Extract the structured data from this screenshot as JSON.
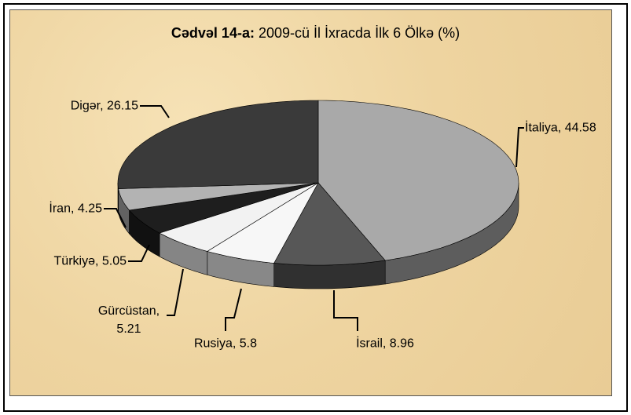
{
  "chart_data": {
    "type": "pie3d",
    "title_label": "Cədvəl 14-a:",
    "title": "2009-cü İl İxracda İlk 6 Ölkə (%)",
    "values": [
      44.58,
      8.96,
      5.8,
      5.21,
      5.05,
      4.25,
      26.15
    ],
    "value_labels": [
      "İtaliya, 44.58",
      "İsrail, 8.96",
      "Rusiya, 5.8",
      "Gürcüstan, 5.21",
      "Türkiyə, 5.05",
      "İran, 4.25",
      "Digər, 26.15"
    ],
    "colors": [
      "#a9a9a9",
      "#575757",
      "#f7f7f7",
      "#f2f2f2",
      "#1e1e1e",
      "#b3b3b3",
      "#3a3a3a"
    ]
  }
}
